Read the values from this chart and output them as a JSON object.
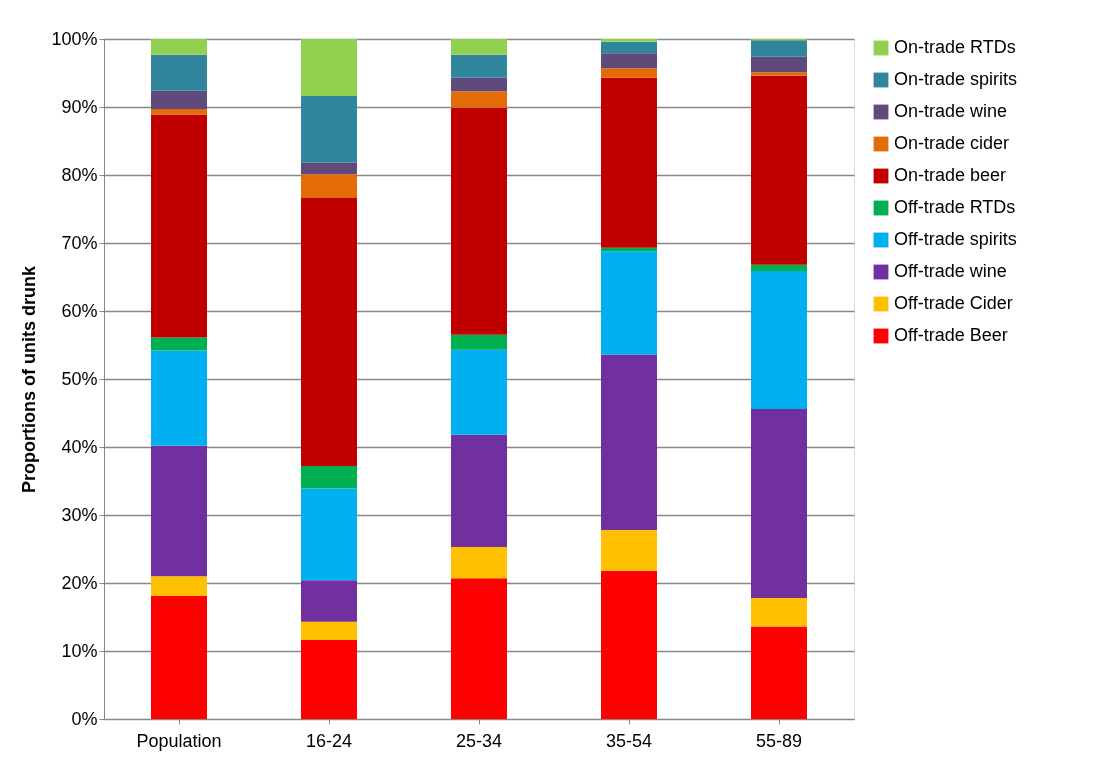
{
  "chart_data": {
    "type": "bar",
    "stacked": true,
    "ylabel": "Proportions of units drunk",
    "categories": [
      "Population",
      "16-24",
      "25-34",
      "35-54",
      "55-89"
    ],
    "series": [
      {
        "name": "Off-trade Beer",
        "color": "#ff0000",
        "values": [
          18.1,
          11.6,
          20.7,
          21.8,
          13.6
        ]
      },
      {
        "name": "Off-trade Cider",
        "color": "#ffc000",
        "values": [
          2.9,
          2.7,
          4.6,
          6.0,
          4.2
        ]
      },
      {
        "name": "Off-trade wine",
        "color": "#7030a0",
        "values": [
          19.2,
          6.1,
          16.5,
          25.8,
          27.8
        ]
      },
      {
        "name": "Off-trade spirits",
        "color": "#00b0f0",
        "values": [
          14.0,
          13.5,
          12.5,
          15.2,
          20.3
        ]
      },
      {
        "name": "Off-trade RTDs",
        "color": "#00b050",
        "values": [
          1.9,
          3.3,
          2.2,
          0.5,
          0.9
        ]
      },
      {
        "name": "On-trade beer",
        "color": "#c00000",
        "values": [
          32.8,
          39.4,
          33.4,
          25.0,
          27.8
        ]
      },
      {
        "name": "On-trade cider",
        "color": "#e36c09",
        "values": [
          0.8,
          3.5,
          2.4,
          1.4,
          0.5
        ]
      },
      {
        "name": "On-trade wine",
        "color": "#604a7b",
        "values": [
          2.7,
          1.7,
          2.0,
          2.2,
          2.3
        ]
      },
      {
        "name": "On-trade spirits",
        "color": "#31859c",
        "values": [
          5.3,
          9.8,
          3.4,
          1.7,
          2.4
        ]
      },
      {
        "name": "On-trade RTDs",
        "color": "#92d050",
        "values": [
          2.3,
          8.4,
          2.3,
          0.4,
          0.2
        ]
      }
    ],
    "ylim": [
      0,
      100
    ],
    "yticks": [
      {
        "value": 0,
        "label": "0%"
      },
      {
        "value": 10,
        "label": "10%"
      },
      {
        "value": 20,
        "label": "20%"
      },
      {
        "value": 30,
        "label": "30%"
      },
      {
        "value": 40,
        "label": "40%"
      },
      {
        "value": 50,
        "label": "50%"
      },
      {
        "value": 60,
        "label": "60%"
      },
      {
        "value": 70,
        "label": "70%"
      },
      {
        "value": 80,
        "label": "80%"
      },
      {
        "value": 90,
        "label": "90%"
      },
      {
        "value": 100,
        "label": "100%"
      }
    ],
    "grid": "y",
    "legend": "right"
  }
}
